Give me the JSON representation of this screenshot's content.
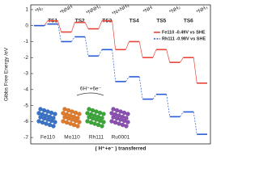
{
  "chart_data": {
    "type": "step",
    "ylabel": "Gibbs Free Energy /eV",
    "xlabel": "( H⁺+e⁻ ) transferred",
    "categories": [
      "*N₂",
      "TS1",
      "*NNH",
      "TS2",
      "*NNH₂",
      "TS3",
      "*N+NH₃",
      "TS4",
      "*NH",
      "TS5",
      "*NH₂",
      "TS6",
      "*NH₃"
    ],
    "series": [
      {
        "name": "Fe110 -0.49V vs SHE",
        "color": "#e8443a",
        "dashed": false,
        "values": [
          0,
          0.3,
          -0.4,
          0.2,
          -0.2,
          0.3,
          -1.5,
          -1.0,
          -2.0,
          -1.5,
          -2.3,
          -2.0,
          -3.6
        ]
      },
      {
        "name": "Rh111 -0.98V vs SHE",
        "color": "#2a5bd7",
        "dashed": true,
        "values": [
          0,
          0.1,
          -1.0,
          -0.7,
          -1.9,
          -1.5,
          -3.5,
          -3.2,
          -4.6,
          -4.3,
          -5.7,
          -5.4,
          -6.8
        ]
      }
    ],
    "ylim": [
      -7.4,
      1.3
    ],
    "yticks": [
      1,
      0,
      -1,
      -2,
      -3,
      -4,
      -5,
      -6,
      -7
    ],
    "legend": "upper-right",
    "annotation": "6H⁺+6e⁻",
    "inset_labels": [
      "Fe110",
      "Mo110",
      "Rh111",
      "Ru0001"
    ]
  }
}
